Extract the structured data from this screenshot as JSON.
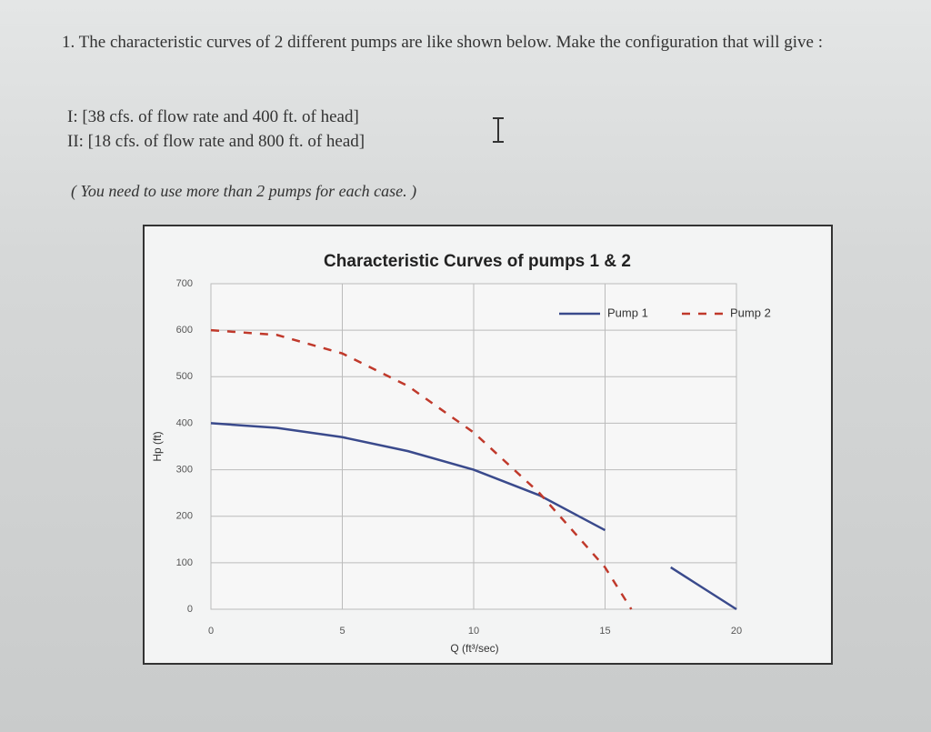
{
  "question": {
    "prompt": "1. The characteristic curves of 2 different pumps are like shown below. Make the configuration that will give :",
    "cases": [
      "I: [38 cfs. of flow rate and 400 ft. of head]",
      "II: [18 cfs. of flow rate and 800 ft. of head]"
    ],
    "note": "( You need to use more than 2 pumps for each case. )"
  },
  "chart_data": {
    "type": "line",
    "title": "Characteristic Curves of pumps 1 & 2",
    "x_label": "Q (ft³/sec)",
    "y_label": "Hp (ft)",
    "x": [
      0,
      2.5,
      5,
      7.5,
      10,
      12.5,
      15,
      16,
      17.5,
      20
    ],
    "series": [
      {
        "name": "Pump 1",
        "color": "#3a4a8c",
        "line_style": "solid",
        "values": [
          400,
          390,
          370,
          340,
          300,
          245,
          170,
          null,
          90,
          0
        ]
      },
      {
        "name": "Pump 2",
        "color": "#c0392b",
        "line_style": "dashed",
        "values": [
          600,
          590,
          550,
          480,
          380,
          250,
          90,
          0,
          null,
          null
        ]
      }
    ],
    "xlim": [
      0,
      20
    ],
    "xticks": [
      0,
      5,
      10,
      15,
      20
    ],
    "ylim": [
      0,
      700
    ],
    "yticks": [
      0,
      100,
      200,
      300,
      400,
      500,
      600,
      700
    ],
    "grid": true,
    "legend": "top-right"
  }
}
